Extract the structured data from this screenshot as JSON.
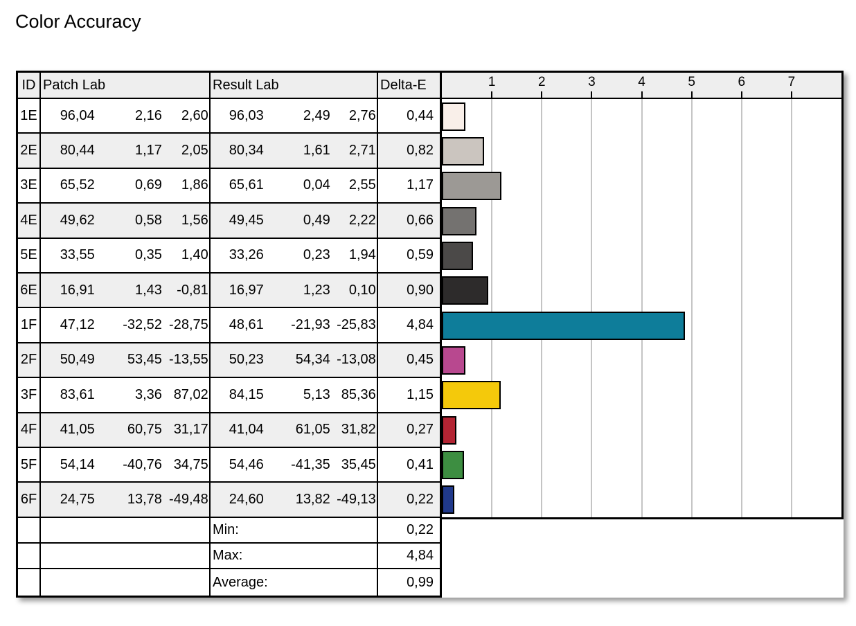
{
  "title": "Color Accuracy",
  "table": {
    "headers": {
      "id": "ID",
      "patch": "Patch Lab",
      "result": "Result Lab",
      "delta": "Delta-E"
    },
    "rows": [
      {
        "id": "1E",
        "patch": [
          "96,04",
          "2,16",
          "2,60"
        ],
        "result": [
          "96,03",
          "2,49",
          "2,76"
        ],
        "delta": "0,44",
        "delta_value": 0.44,
        "patch_color": "#F9EFE9"
      },
      {
        "id": "2E",
        "patch": [
          "80,44",
          "1,17",
          "2,05"
        ],
        "result": [
          "80,34",
          "1,61",
          "2,71"
        ],
        "delta": "0,82",
        "delta_value": 0.82,
        "patch_color": "#CBC5BF"
      },
      {
        "id": "3E",
        "patch": [
          "65,52",
          "0,69",
          "1,86"
        ],
        "result": [
          "65,61",
          "0,04",
          "2,55"
        ],
        "delta": "1,17",
        "delta_value": 1.17,
        "patch_color": "#9C9995"
      },
      {
        "id": "4E",
        "patch": [
          "49,62",
          "0,58",
          "1,56"
        ],
        "result": [
          "49,45",
          "0,49",
          "2,22"
        ],
        "delta": "0,66",
        "delta_value": 0.66,
        "patch_color": "#747270"
      },
      {
        "id": "5E",
        "patch": [
          "33,55",
          "0,35",
          "1,40"
        ],
        "result": [
          "33,26",
          "0,23",
          "1,94"
        ],
        "delta": "0,59",
        "delta_value": 0.59,
        "patch_color": "#4B4948"
      },
      {
        "id": "6E",
        "patch": [
          "16,91",
          "1,43",
          "-0,81"
        ],
        "result": [
          "16,97",
          "1,23",
          "0,10"
        ],
        "delta": "0,90",
        "delta_value": 0.9,
        "patch_color": "#2D2B2B"
      },
      {
        "id": "1F",
        "patch": [
          "47,12",
          "-32,52",
          "-28,75"
        ],
        "result": [
          "48,61",
          "-21,93",
          "-25,83"
        ],
        "delta": "4,84",
        "delta_value": 4.84,
        "patch_color": "#0E7D9A"
      },
      {
        "id": "2F",
        "patch": [
          "50,49",
          "53,45",
          "-13,55"
        ],
        "result": [
          "50,23",
          "54,34",
          "-13,08"
        ],
        "delta": "0,45",
        "delta_value": 0.45,
        "patch_color": "#B8488F"
      },
      {
        "id": "3F",
        "patch": [
          "83,61",
          "3,36",
          "87,02"
        ],
        "result": [
          "84,15",
          "5,13",
          "85,36"
        ],
        "delta": "1,15",
        "delta_value": 1.15,
        "patch_color": "#F4C90B"
      },
      {
        "id": "4F",
        "patch": [
          "41,05",
          "60,75",
          "31,17"
        ],
        "result": [
          "41,04",
          "61,05",
          "31,82"
        ],
        "delta": "0,27",
        "delta_value": 0.27,
        "patch_color": "#B32433"
      },
      {
        "id": "5F",
        "patch": [
          "54,14",
          "-40,76",
          "34,75"
        ],
        "result": [
          "54,46",
          "-41,35",
          "35,45"
        ],
        "delta": "0,41",
        "delta_value": 0.41,
        "patch_color": "#3D8E41"
      },
      {
        "id": "6F",
        "patch": [
          "24,75",
          "13,78",
          "-49,48"
        ],
        "result": [
          "24,60",
          "13,82",
          "-49,13"
        ],
        "delta": "0,22",
        "delta_value": 0.22,
        "patch_color": "#20398B"
      }
    ],
    "summary": [
      {
        "label": "Min:",
        "value": "0,22"
      },
      {
        "label": "Max:",
        "value": "4,84"
      },
      {
        "label": "Average:",
        "value": "0,99"
      }
    ]
  },
  "chart_data": {
    "type": "bar",
    "orientation": "horizontal",
    "title": "Color Accuracy",
    "categories": [
      "1E",
      "2E",
      "3E",
      "4E",
      "5E",
      "6E",
      "1F",
      "2F",
      "3F",
      "4F",
      "5F",
      "6F"
    ],
    "values": [
      0.44,
      0.82,
      1.17,
      0.66,
      0.59,
      0.9,
      4.84,
      0.45,
      1.15,
      0.27,
      0.41,
      0.22
    ],
    "bar_colors": [
      "#F9EFE9",
      "#CBC5BF",
      "#9C9995",
      "#747270",
      "#4B4948",
      "#2D2B2B",
      "#0E7D9A",
      "#B8488F",
      "#F4C90B",
      "#B32433",
      "#3D8E41",
      "#20398B"
    ],
    "xlabel": "Delta-E",
    "x_ticks": [
      1,
      2,
      3,
      4,
      5,
      6,
      7
    ],
    "xlim": [
      0,
      8
    ],
    "grid": true,
    "gridline_color": "#C4C4C4",
    "legend": false
  },
  "colors": {
    "border": "#000000",
    "header_bg": "#EEEEEE",
    "stripe_bg": "#EFEFEF",
    "text": "#000000"
  }
}
